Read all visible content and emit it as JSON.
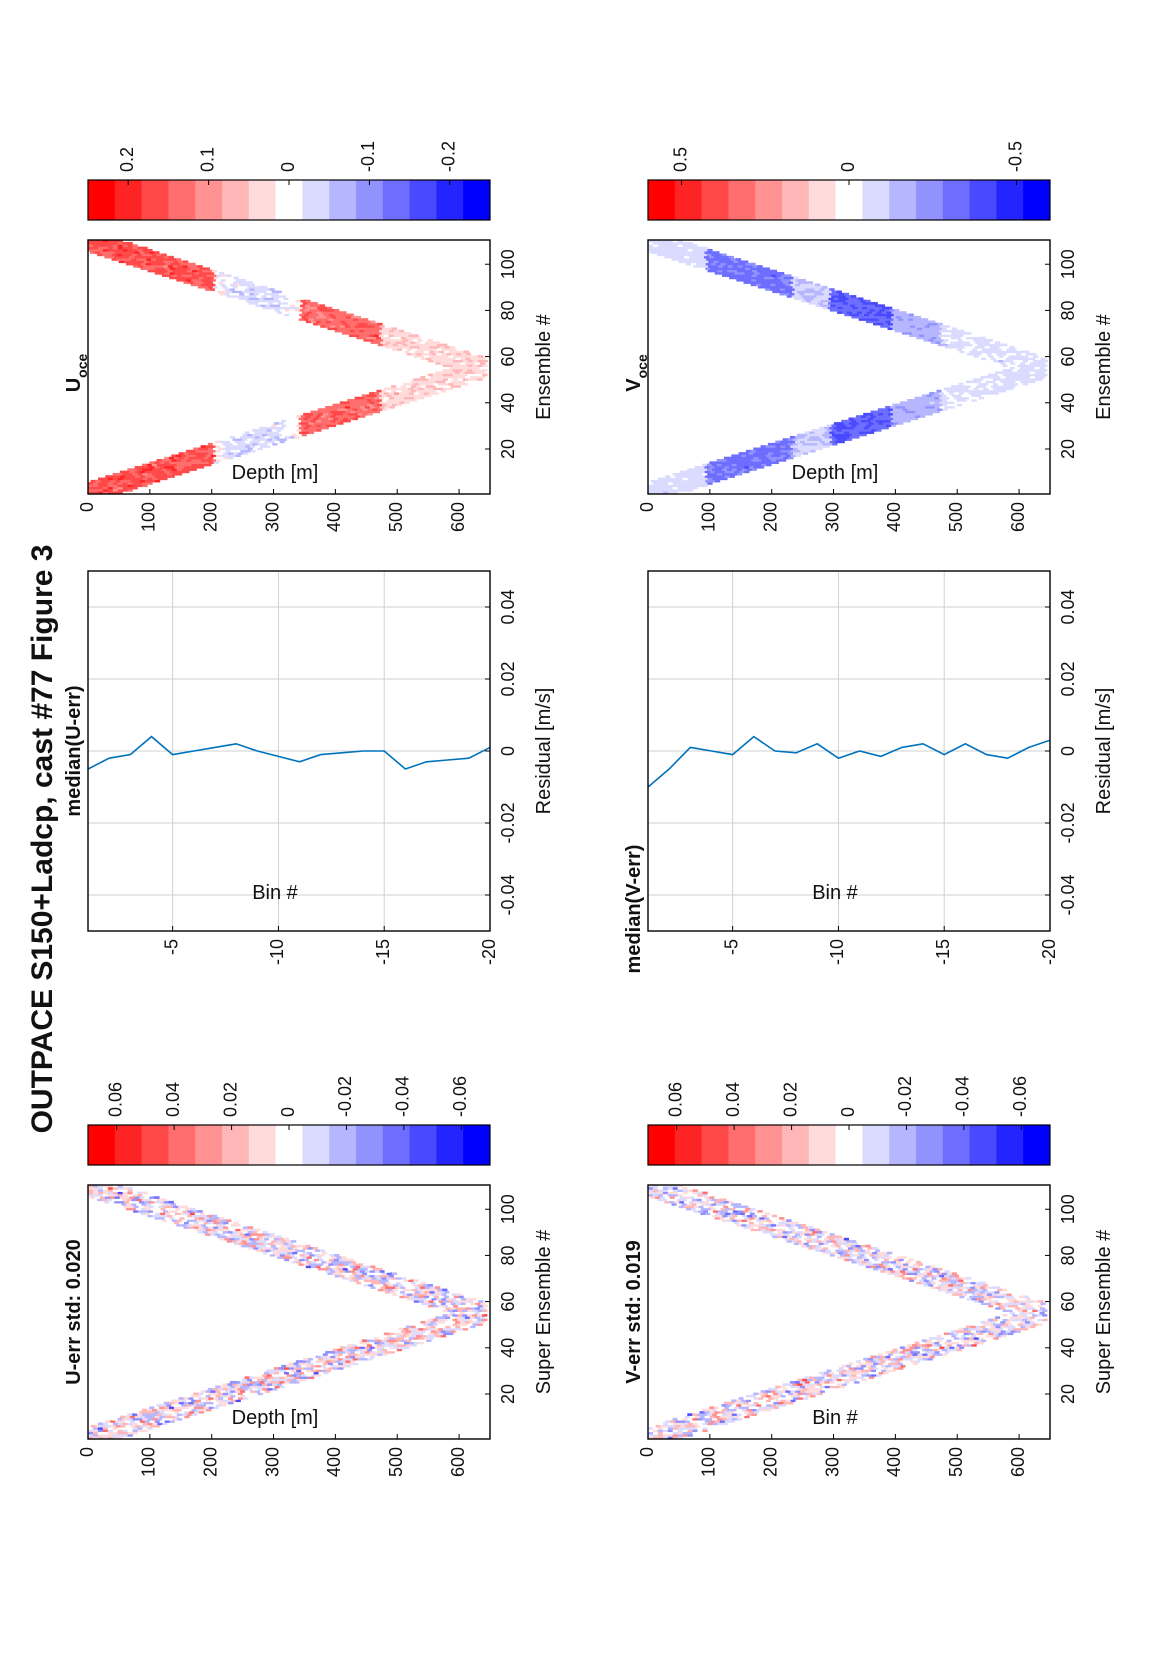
{
  "figure_title": "OUTPACE S150+Ladcp, cast #77  Figure 3",
  "chart_data": [
    {
      "id": "u_err",
      "type": "heatmap",
      "title": "U-err std: 0.020",
      "xlabel": "Super Ensemble #",
      "ylabel": "Depth [m]",
      "xlim": [
        1,
        110
      ],
      "ylim": [
        0,
        650
      ],
      "xticks": [
        "20",
        "40",
        "60",
        "80",
        "100"
      ],
      "yticks": [
        "0",
        "100",
        "200",
        "300",
        "400",
        "500",
        "600"
      ],
      "colorbar": {
        "min": -0.07,
        "max": 0.07,
        "ticks": [
          "0.06",
          "0.04",
          "0.02",
          "0",
          "-0.02",
          "-0.04",
          "-0.06"
        ]
      },
      "field": {
        "pattern": "v",
        "turn_ensemble": 55,
        "max_depth": 640,
        "band_width": 100,
        "kind": "noise",
        "amplitude": 0.035
      }
    },
    {
      "id": "median_u",
      "type": "line",
      "title": "median(U-err)",
      "xlabel": "Residual [m/s]",
      "ylabel": "Bin #",
      "xlim": [
        -0.05,
        0.05
      ],
      "ylim": [
        -20,
        -1
      ],
      "xticks": [
        "-0.04",
        "-0.02",
        "0",
        "0.02",
        "0.04"
      ],
      "yticks": [
        "-5",
        "-10",
        "-15",
        "-20"
      ],
      "grid": true,
      "series": [
        {
          "x": [
            -0.005,
            -0.002,
            -0.001,
            0.004,
            -0.001,
            0.0,
            0.001,
            0.002,
            0.0,
            -0.0015,
            -0.003,
            -0.001,
            -0.0005,
            0.0,
            0.0,
            -0.005,
            -0.003,
            -0.0025,
            -0.002,
            0.001
          ],
          "y": [
            -1,
            -2,
            -3,
            -4,
            -5,
            -6,
            -7,
            -8,
            -9,
            -10,
            -11,
            -12,
            -13,
            -14,
            -15,
            -16,
            -17,
            -18,
            -19,
            -20
          ]
        }
      ]
    },
    {
      "id": "u_oce",
      "type": "heatmap",
      "title": "U",
      "title_subscript": "oce",
      "xlabel": "Ensemble #",
      "ylabel": "Depth [m]",
      "xlim": [
        1,
        110
      ],
      "ylim": [
        0,
        650
      ],
      "xticks": [
        "20",
        "40",
        "60",
        "80",
        "100"
      ],
      "yticks": [
        "0",
        "100",
        "200",
        "300",
        "400",
        "500",
        "600"
      ],
      "colorbar": {
        "min": -0.25,
        "max": 0.25,
        "ticks": [
          "0.2",
          "0.1",
          "0",
          "-0.1",
          "-0.2"
        ]
      },
      "field": {
        "pattern": "v",
        "turn_ensemble": 55,
        "max_depth": 640,
        "band_width": 100,
        "kind": "u_profile",
        "amplitude": 0.04
      }
    },
    {
      "id": "v_err",
      "type": "heatmap",
      "title": "V-err std: 0.019",
      "xlabel": "Super Ensemble #",
      "ylabel": "Bin #",
      "xlim": [
        1,
        110
      ],
      "ylim": [
        0,
        650
      ],
      "xticks": [
        "20",
        "40",
        "60",
        "80",
        "100"
      ],
      "yticks": [
        "0",
        "100",
        "200",
        "300",
        "400",
        "500",
        "600"
      ],
      "colorbar": {
        "min": -0.07,
        "max": 0.07,
        "ticks": [
          "0.06",
          "0.04",
          "0.02",
          "0",
          "-0.02",
          "-0.04",
          "-0.06"
        ]
      },
      "field": {
        "pattern": "v",
        "turn_ensemble": 55,
        "max_depth": 640,
        "band_width": 100,
        "kind": "noise",
        "amplitude": 0.033
      }
    },
    {
      "id": "median_v",
      "type": "line",
      "title": "median(V-err)",
      "xlabel": "Residual [m/s]",
      "ylabel": "Bin #",
      "xlim": [
        -0.05,
        0.05
      ],
      "ylim": [
        -20,
        -1
      ],
      "xticks": [
        "-0.04",
        "-0.02",
        "0",
        "0.02",
        "0.04"
      ],
      "yticks": [
        "-5",
        "-10",
        "-15",
        "-20"
      ],
      "grid": true,
      "series": [
        {
          "x": [
            -0.01,
            -0.005,
            0.001,
            0.0,
            -0.001,
            0.004,
            0.0,
            -0.0005,
            0.002,
            -0.002,
            0.0,
            -0.0015,
            0.001,
            0.002,
            -0.001,
            0.002,
            -0.001,
            -0.002,
            0.001,
            0.003
          ],
          "y": [
            -1,
            -2,
            -3,
            -4,
            -5,
            -6,
            -7,
            -8,
            -9,
            -10,
            -11,
            -12,
            -13,
            -14,
            -15,
            -16,
            -17,
            -18,
            -19,
            -20
          ]
        }
      ]
    },
    {
      "id": "v_oce",
      "type": "heatmap",
      "title": "V",
      "title_subscript": "oce",
      "xlabel": "Ensemble #",
      "ylabel": "Depth [m]",
      "xlim": [
        1,
        110
      ],
      "ylim": [
        0,
        650
      ],
      "xticks": [
        "20",
        "40",
        "60",
        "80",
        "100"
      ],
      "yticks": [
        "0",
        "100",
        "200",
        "300",
        "400",
        "500",
        "600"
      ],
      "colorbar": {
        "min": -0.6,
        "max": 0.6,
        "ticks": [
          "0.5",
          "0",
          "-0.5"
        ]
      },
      "field": {
        "pattern": "v",
        "turn_ensemble": 55,
        "max_depth": 640,
        "band_width": 100,
        "kind": "v_profile",
        "amplitude": 0.05
      }
    }
  ]
}
